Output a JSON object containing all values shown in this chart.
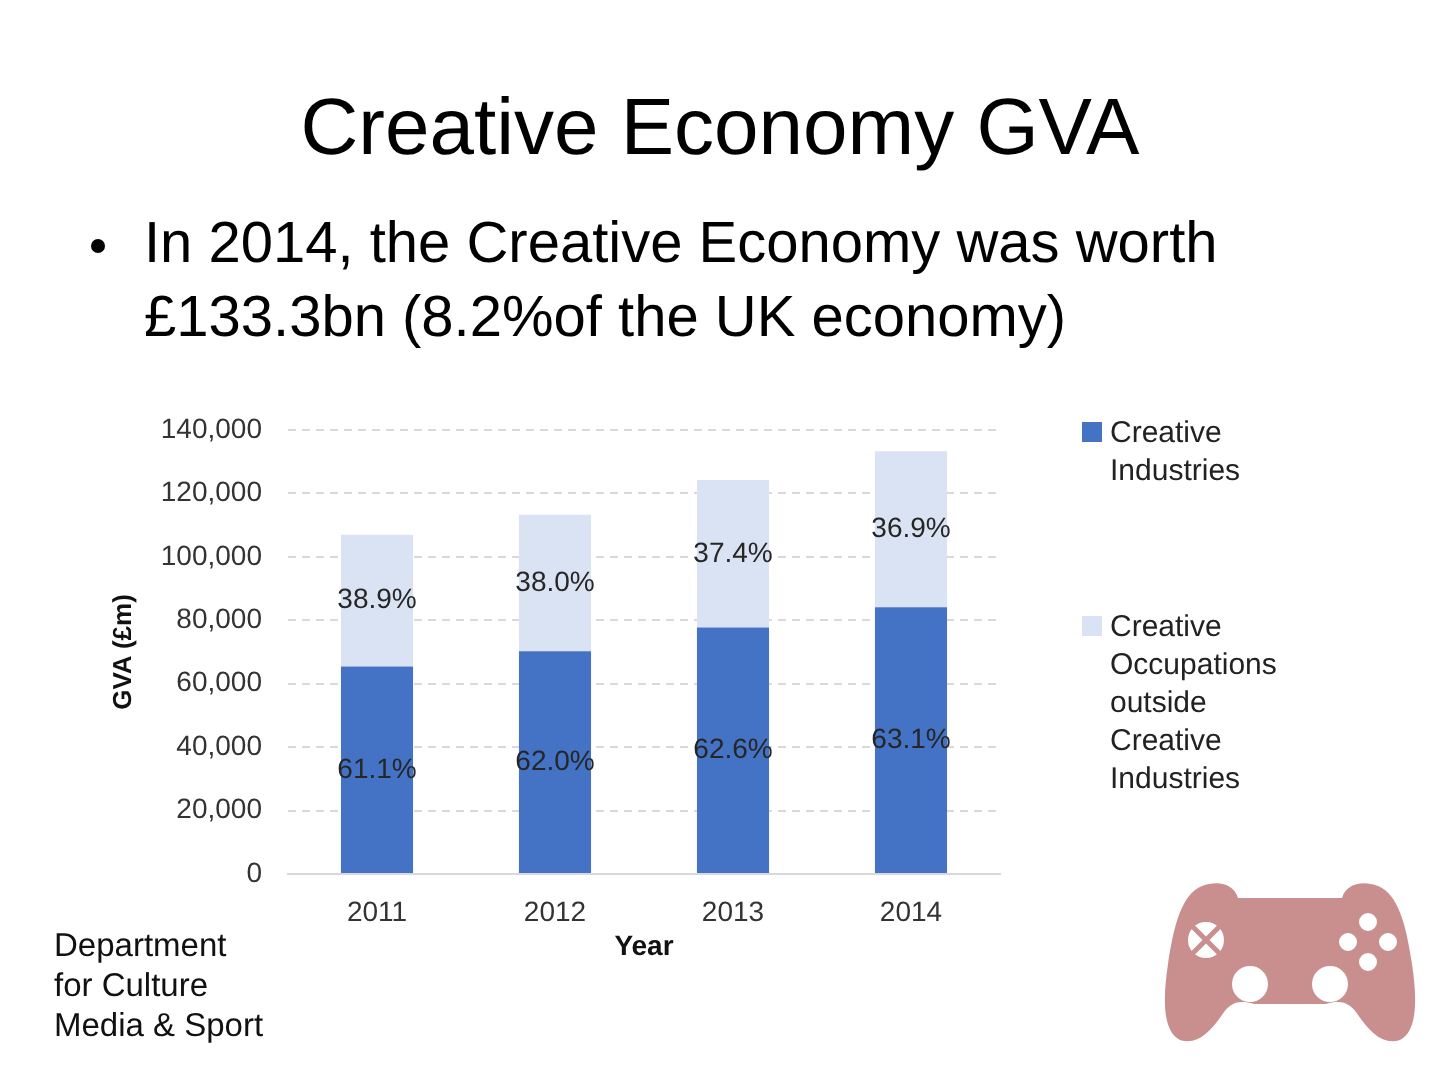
{
  "chart_data": {
    "type": "bar",
    "title": "Creative Economy GVA",
    "subtitle": "In 2014, the Creative Economy was worth £133.3bn (8.2%of the UK economy)",
    "xlabel": "Year",
    "ylabel": "GVA (£m)",
    "categories": [
      "2011",
      "2012",
      "2013",
      "2014"
    ],
    "stacked": true,
    "series": [
      {
        "name": "Creative Industries",
        "color": "#4472c4",
        "values": [
          65400,
          70200,
          77700,
          84100
        ]
      },
      {
        "name": "Creative Occupations outside Creative Industries",
        "color": "#dae3f3",
        "values": [
          41600,
          43100,
          46500,
          49200
        ]
      }
    ],
    "ylim": [
      0,
      140000
    ],
    "yticks": [
      0,
      {
        "value": 20000,
        "label": "20,000"
      },
      {
        "value": 40000,
        "label": "40,000"
      },
      {
        "value": 60000,
        "label": "60,000"
      },
      {
        "value": 80000,
        "label": "80,000"
      },
      {
        "value": 100000,
        "label": "100,000"
      },
      {
        "value": 120000,
        "label": "120,000"
      },
      {
        "value": 140000,
        "label": "140,000"
      }
    ],
    "grid": "y",
    "legend": "right",
    "annotations": [
      "61.1%",
      "62.0%",
      "62.6%",
      "63.1%",
      "38.9%",
      "38.0%",
      "37.4%",
      "36.9%",
      "Department for Culture Media & Sport"
    ]
  }
}
